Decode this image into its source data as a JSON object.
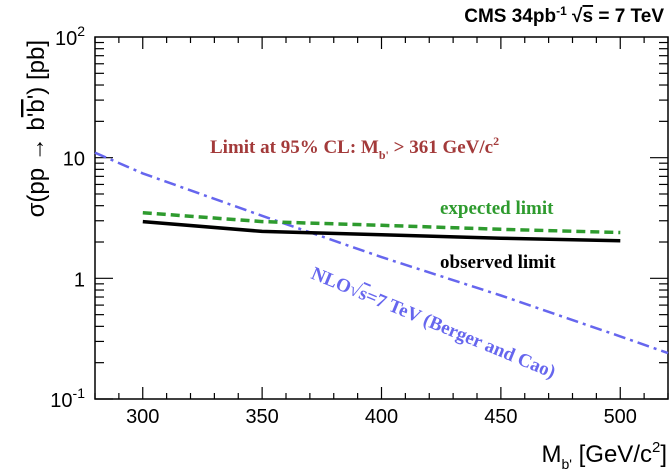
{
  "chart_data": {
    "type": "line",
    "title": "CMS 34pb⁻¹ √s = 7 TeV",
    "title_parts": {
      "main": "CMS 34pb",
      "sup": "-1",
      "sqrt": "s",
      "rest": " = 7 TeV"
    },
    "xlabel": {
      "main": "M",
      "sub": "b'",
      "rest": " [GeV/c",
      "sup": "2",
      "close": "]"
    },
    "ylabel": {
      "a": "σ(pp → b",
      "b": "'b",
      "c": "') [pb]"
    },
    "xlim": [
      280,
      520
    ],
    "ylim": [
      0.1,
      100
    ],
    "y_scale": "log",
    "x_ticks": [
      300,
      350,
      400,
      450,
      500
    ],
    "x_tick_labels": [
      "300",
      "350",
      "400",
      "450",
      "500"
    ],
    "y_ticks": [
      {
        "value": 100,
        "base": "10",
        "sup": "2"
      },
      {
        "value": 10,
        "base": "10",
        "sup": ""
      },
      {
        "value": 1,
        "base": "1",
        "sup": ""
      },
      {
        "value": 0.1,
        "base": "10",
        "sup": "-1"
      }
    ],
    "series": [
      {
        "name": "observed limit",
        "color": "#000000",
        "style": "solid",
        "x": [
          300,
          350,
          400,
          450,
          500
        ],
        "y": [
          2.95,
          2.45,
          2.3,
          2.15,
          2.05
        ]
      },
      {
        "name": "expected limit",
        "color": "#2e9b2e",
        "style": "dashed",
        "x": [
          300,
          350,
          400,
          450,
          500
        ],
        "y": [
          3.5,
          2.95,
          2.75,
          2.55,
          2.4
        ]
      },
      {
        "name": "NLO√s=7 TeV (Berger and Cao)",
        "color": "#6666ee",
        "style": "dashdot",
        "x": [
          280,
          300,
          350,
          400,
          450,
          500,
          520
        ],
        "y": [
          11,
          7.4,
          3.3,
          1.5,
          0.72,
          0.33,
          0.24
        ]
      }
    ],
    "annotations": {
      "limit": {
        "main": "Limit at 95% CL: M",
        "sub": "b'",
        "rest": " > 361 GeV/c",
        "sup": "2",
        "color": "#a33a3a"
      },
      "expected": {
        "text": "expected limit",
        "color": "#2e9b2e"
      },
      "observed": {
        "text": "observed limit",
        "color": "#000000"
      },
      "nlo": {
        "main": "NLO",
        "sqrt": "s",
        "rest": "=7 TeV (Berger and Cao)",
        "color": "#6666ee"
      }
    },
    "grid": false,
    "legend": "none"
  }
}
